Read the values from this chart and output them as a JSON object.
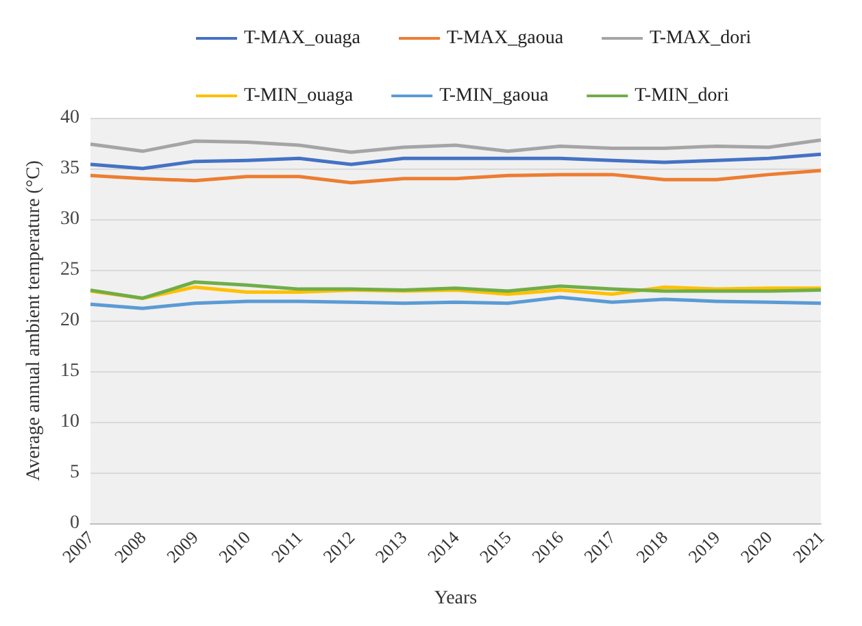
{
  "chart_data": {
    "type": "line",
    "xlabel": "Years",
    "ylabel": "Average annual ambient temperature (°C)",
    "categories": [
      "2007",
      "2008",
      "2009",
      "2010",
      "2011",
      "2012",
      "2013",
      "2014",
      "2015",
      "2016",
      "2017",
      "2018",
      "2019",
      "2020",
      "2021"
    ],
    "series": [
      {
        "name": "T-MAX_ouaga",
        "color": "#4472c4",
        "values": [
          35.4,
          35.0,
          35.7,
          35.8,
          36.0,
          35.4,
          36.0,
          36.0,
          36.0,
          36.0,
          35.8,
          35.6,
          35.8,
          36.0,
          36.4
        ]
      },
      {
        "name": "T-MAX_gaoua",
        "color": "#ed7d31",
        "values": [
          34.3,
          34.0,
          33.8,
          34.2,
          34.2,
          33.6,
          34.0,
          34.0,
          34.3,
          34.4,
          34.4,
          33.9,
          33.9,
          34.4,
          34.8
        ]
      },
      {
        "name": "T-MAX_dori",
        "color": "#a5a5a5",
        "values": [
          37.4,
          36.7,
          37.7,
          37.6,
          37.3,
          36.6,
          37.1,
          37.3,
          36.7,
          37.2,
          37.0,
          37.0,
          37.2,
          37.1,
          37.8
        ]
      },
      {
        "name": "T-MIN_ouaga",
        "color": "#ffc000",
        "values": [
          22.9,
          22.2,
          23.3,
          22.8,
          22.8,
          23.0,
          22.9,
          23.0,
          22.6,
          23.0,
          22.6,
          23.3,
          23.1,
          23.2,
          23.2
        ]
      },
      {
        "name": "T-MIN_gaoua",
        "color": "#5b9bd5",
        "values": [
          21.6,
          21.2,
          21.7,
          21.9,
          21.9,
          21.8,
          21.7,
          21.8,
          21.7,
          22.3,
          21.8,
          22.1,
          21.9,
          21.8,
          21.7
        ]
      },
      {
        "name": "T-MIN_dori",
        "color": "#70ad47",
        "values": [
          23.0,
          22.2,
          23.8,
          23.5,
          23.1,
          23.1,
          23.0,
          23.2,
          22.9,
          23.4,
          23.1,
          22.9,
          22.9,
          22.9,
          23.0
        ]
      }
    ],
    "ylim": [
      0,
      40
    ],
    "yticks": [
      0,
      5,
      10,
      15,
      20,
      25,
      30,
      35,
      40
    ],
    "grid": "y",
    "legend": "top",
    "marker": "none",
    "line_style": "solid"
  }
}
